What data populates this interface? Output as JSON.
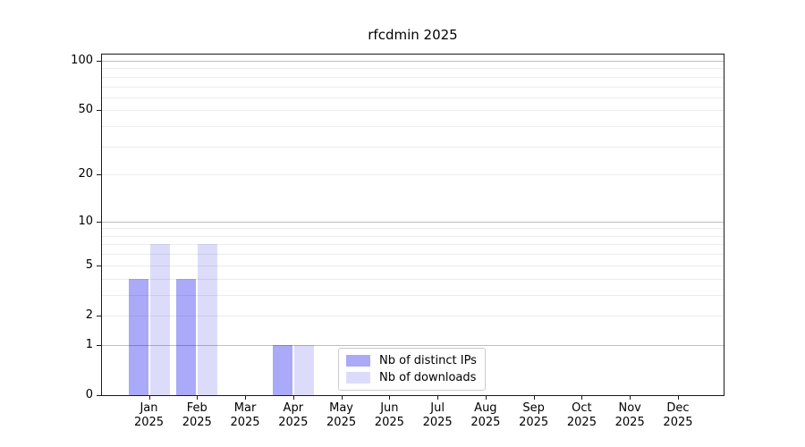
{
  "chart_data": {
    "type": "bar",
    "title": "rfcdmin 2025",
    "year_label": "2025",
    "categories": [
      "Jan",
      "Feb",
      "Mar",
      "Apr",
      "May",
      "Jun",
      "Jul",
      "Aug",
      "Sep",
      "Oct",
      "Nov",
      "Dec"
    ],
    "series": [
      {
        "name": "Nb of distinct IPs",
        "color": "#aaaaf8",
        "values": [
          4,
          4,
          0,
          1,
          0,
          0,
          0,
          0,
          0,
          0,
          0,
          0
        ]
      },
      {
        "name": "Nb of downloads",
        "color": "#dcdcfa",
        "values": [
          7,
          7,
          0,
          1,
          0,
          0,
          0,
          0,
          0,
          0,
          0,
          0
        ]
      }
    ],
    "yticks": [
      0,
      1,
      2,
      5,
      10,
      20,
      50,
      100
    ],
    "ylim": [
      0,
      113
    ],
    "yscale": "log10(1+v)",
    "grid": "on",
    "legend_position": "lower center"
  }
}
